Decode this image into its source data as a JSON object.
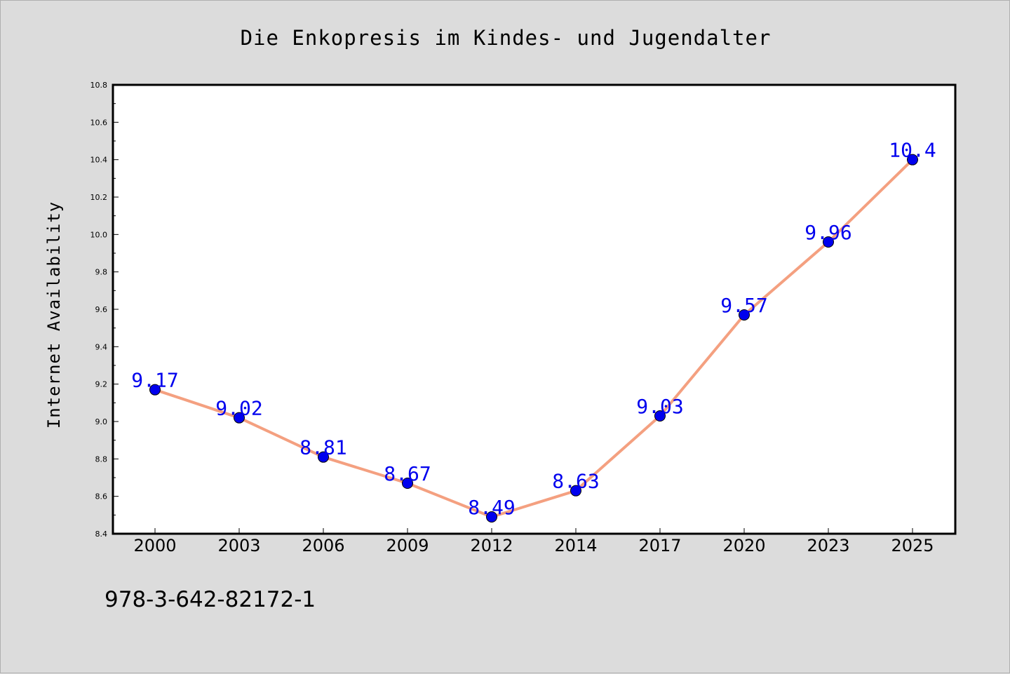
{
  "chart_data": {
    "type": "line",
    "title": "Die Enkopresis im Kindes- und Jugendalter",
    "xlabel": "",
    "ylabel": "Internet Availability",
    "categories": [
      "2000",
      "2003",
      "2006",
      "2009",
      "2012",
      "2014",
      "2017",
      "2020",
      "2023",
      "2025"
    ],
    "series": [
      {
        "values": [
          9.17,
          9.02,
          8.81,
          8.67,
          8.49,
          8.63,
          9.03,
          9.57,
          9.96,
          10.4
        ],
        "data_labels": [
          "9.17",
          "9.02",
          "8.81",
          "8.67",
          "8.49",
          "8.63",
          "9.03",
          "9.57",
          "9.96",
          "10.4"
        ],
        "line_color": "#f4a080",
        "marker_color": "#0000ee",
        "label_color": "#0000ee"
      }
    ],
    "ylim": [
      8.4,
      10.8
    ],
    "yticks": [
      "8.4",
      "8.6",
      "8.8",
      "9.0",
      "9.2",
      "9.4",
      "9.6",
      "9.8",
      "10.0",
      "10.2",
      "10.4",
      "10.6",
      "10.8"
    ],
    "grid": false,
    "legend": "none"
  },
  "footer_text": "978-3-642-82172-1",
  "colors": {
    "background": "#dcdcdc",
    "plot_background": "#ffffff",
    "axis": "#000000"
  }
}
